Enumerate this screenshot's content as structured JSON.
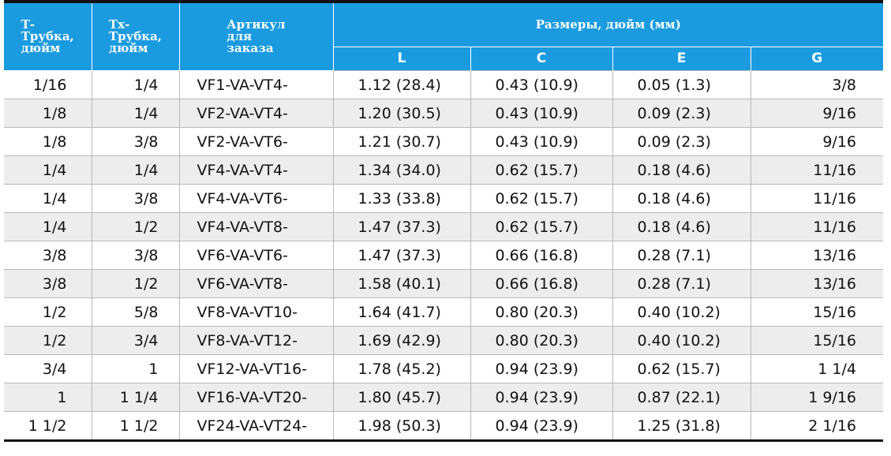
{
  "header": {
    "col_t": "Т-\nТрубка,\nдюйм",
    "col_tx": "Тх-\nТрубка,\nдюйм",
    "col_code": "Артикул\nдля\nзаказа",
    "dims_group": "Размеры, дюйм (мм)",
    "dim_l": "L",
    "dim_c": "C",
    "dim_e": "E",
    "dim_g": "G"
  },
  "rows": [
    {
      "t": "1/16",
      "tx": "1/4",
      "code": "VF1-VA-VT4-",
      "l": "1.12 (28.4)",
      "c": "0.43 (10.9)",
      "e": "0.05 (1.3)",
      "g": "3/8"
    },
    {
      "t": "1/8",
      "tx": "1/4",
      "code": "VF2-VA-VT4-",
      "l": "1.20 (30.5)",
      "c": "0.43 (10.9)",
      "e": "0.09 (2.3)",
      "g": "9/16"
    },
    {
      "t": "1/8",
      "tx": "3/8",
      "code": "VF2-VA-VT6-",
      "l": "1.21 (30.7)",
      "c": "0.43 (10.9)",
      "e": "0.09 (2.3)",
      "g": "9/16"
    },
    {
      "t": "1/4",
      "tx": "1/4",
      "code": "VF4-VA-VT4-",
      "l": "1.34 (34.0)",
      "c": "0.62 (15.7)",
      "e": "0.18 (4.6)",
      "g": "11/16"
    },
    {
      "t": "1/4",
      "tx": "3/8",
      "code": "VF4-VA-VT6-",
      "l": "1.33 (33.8)",
      "c": "0.62 (15.7)",
      "e": "0.18 (4.6)",
      "g": "11/16"
    },
    {
      "t": "1/4",
      "tx": "1/2",
      "code": "VF4-VA-VT8-",
      "l": "1.47 (37.3)",
      "c": "0.62 (15.7)",
      "e": "0.18 (4.6)",
      "g": "11/16"
    },
    {
      "t": "3/8",
      "tx": "3/8",
      "code": "VF6-VA-VT6-",
      "l": "1.47 (37.3)",
      "c": "0.66 (16.8)",
      "e": "0.28 (7.1)",
      "g": "13/16"
    },
    {
      "t": "3/8",
      "tx": "1/2",
      "code": "VF6-VA-VT8-",
      "l": "1.58 (40.1)",
      "c": "0.66 (16.8)",
      "e": "0.28 (7.1)",
      "g": "13/16"
    },
    {
      "t": "1/2",
      "tx": "5/8",
      "code": "VF8-VA-VT10-",
      "l": "1.64 (41.7)",
      "c": "0.80 (20.3)",
      "e": "0.40 (10.2)",
      "g": "15/16"
    },
    {
      "t": "1/2",
      "tx": "3/4",
      "code": "VF8-VA-VT12-",
      "l": "1.69 (42.9)",
      "c": "0.80 (20.3)",
      "e": "0.40 (10.2)",
      "g": "15/16"
    },
    {
      "t": "3/4",
      "tx": "1",
      "code": "VF12-VA-VT16-",
      "l": "1.78 (45.2)",
      "c": "0.94 (23.9)",
      "e": "0.62 (15.7)",
      "g": "1 1/4"
    },
    {
      "t": "1",
      "tx": "1 1/4",
      "code": "VF16-VA-VT20-",
      "l": "1.80 (45.7)",
      "c": "0.94 (23.9)",
      "e": "0.87 (22.1)",
      "g": "1 9/16"
    },
    {
      "t": "1 1/2",
      "tx": "1 1/2",
      "code": "VF24-VA-VT24-",
      "l": "1.98 (50.3)",
      "c": "0.94 (23.9)",
      "e": "1.25 (31.8)",
      "g": "2 1/16"
    }
  ],
  "colors": {
    "header_bg": "#1a9be0",
    "alt_row_bg": "#ededed",
    "rule": "#111111"
  }
}
